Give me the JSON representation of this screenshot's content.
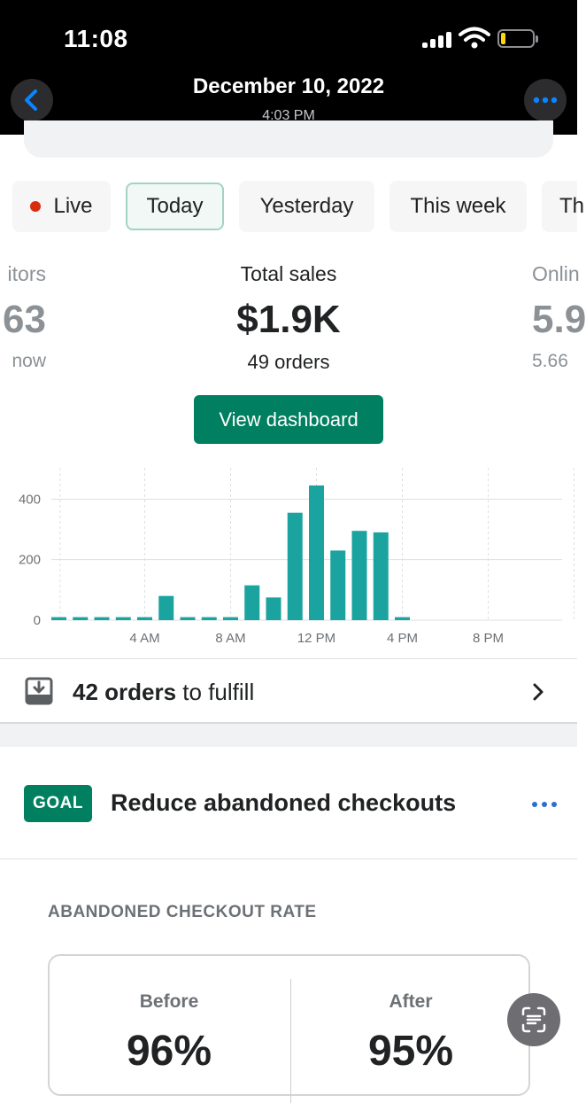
{
  "status_bar": {
    "time": "11:08"
  },
  "nav": {
    "title": "December 10, 2022",
    "subtitle": "4:03 PM"
  },
  "tabs": [
    {
      "label": "Live",
      "live": true
    },
    {
      "label": "Today",
      "active": true
    },
    {
      "label": "Yesterday"
    },
    {
      "label": "This week"
    },
    {
      "label": "Th"
    }
  ],
  "metrics": {
    "left": {
      "label": "itors",
      "value": "63",
      "sub": "now"
    },
    "center": {
      "label": "Total sales",
      "value": "$1.9K",
      "sub": "49 orders"
    },
    "right": {
      "label": "Onlin",
      "value": "5.9",
      "sub": "5.66"
    }
  },
  "view_dashboard_label": "View dashboard",
  "chart_data": {
    "type": "bar",
    "x": [
      0,
      1,
      2,
      3,
      4,
      5,
      6,
      7,
      8,
      9,
      10,
      11,
      12,
      13,
      14,
      15,
      16,
      17,
      18,
      19,
      20,
      21,
      22,
      23
    ],
    "values": [
      10,
      10,
      10,
      10,
      10,
      80,
      10,
      10,
      10,
      115,
      75,
      355,
      445,
      230,
      295,
      290,
      10,
      0,
      0,
      0,
      0,
      0,
      0,
      0
    ],
    "x_tick_labels": [
      "4 AM",
      "8 AM",
      "12 PM",
      "4 PM",
      "8 PM"
    ],
    "x_tick_positions": [
      4,
      8,
      12,
      16,
      20
    ],
    "y_ticks": [
      0,
      200,
      400
    ],
    "ylim": [
      0,
      480
    ],
    "grid": true,
    "colors": {
      "bar": "#1aa39f",
      "grid": "#dcdfe2",
      "tick_text": "#6d7175"
    }
  },
  "fulfill": {
    "count_text": "42 orders",
    "rest_text": " to fulfill"
  },
  "goal": {
    "badge": "GOAL",
    "title": "Reduce abandoned checkouts",
    "rate_label": "ABANDONED CHECKOUT RATE",
    "before_label": "Before",
    "before_value": "96%",
    "after_label": "After",
    "after_value": "95%"
  }
}
